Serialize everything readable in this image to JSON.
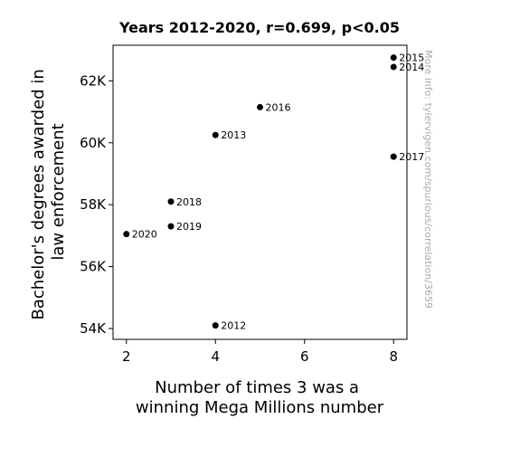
{
  "chart_data": {
    "type": "scatter",
    "title": "Years 2012-2020, r=0.699, p<0.05",
    "xlabel": [
      "Number of times 3 was a",
      "winning Mega Millions number"
    ],
    "ylabel": [
      "Bachelor's degrees awarded in",
      "law enforcement"
    ],
    "xlim": [
      1.7,
      8.3
    ],
    "ylim": [
      53650,
      63150
    ],
    "x_ticks": [
      {
        "value": 2,
        "label": "2"
      },
      {
        "value": 4,
        "label": "4"
      },
      {
        "value": 6,
        "label": "6"
      },
      {
        "value": 8,
        "label": "8"
      }
    ],
    "y_ticks": [
      {
        "value": 54000,
        "label": "54K"
      },
      {
        "value": 56000,
        "label": "56K"
      },
      {
        "value": 58000,
        "label": "58K"
      },
      {
        "value": 60000,
        "label": "60K"
      },
      {
        "value": 62000,
        "label": "62K"
      }
    ],
    "points": [
      {
        "label": "2012",
        "x": 4,
        "y": 54100
      },
      {
        "label": "2013",
        "x": 4,
        "y": 60250
      },
      {
        "label": "2014",
        "x": 8,
        "y": 62450
      },
      {
        "label": "2015",
        "x": 8,
        "y": 62750
      },
      {
        "label": "2016",
        "x": 5,
        "y": 61150
      },
      {
        "label": "2017",
        "x": 8,
        "y": 59550
      },
      {
        "label": "2018",
        "x": 3,
        "y": 58100
      },
      {
        "label": "2019",
        "x": 3,
        "y": 57300
      },
      {
        "label": "2020",
        "x": 2,
        "y": 57050
      }
    ],
    "grid": false,
    "marker_color": "#000000",
    "watermark": "More info: tylervigen.com/spurious/correlation/3659"
  }
}
